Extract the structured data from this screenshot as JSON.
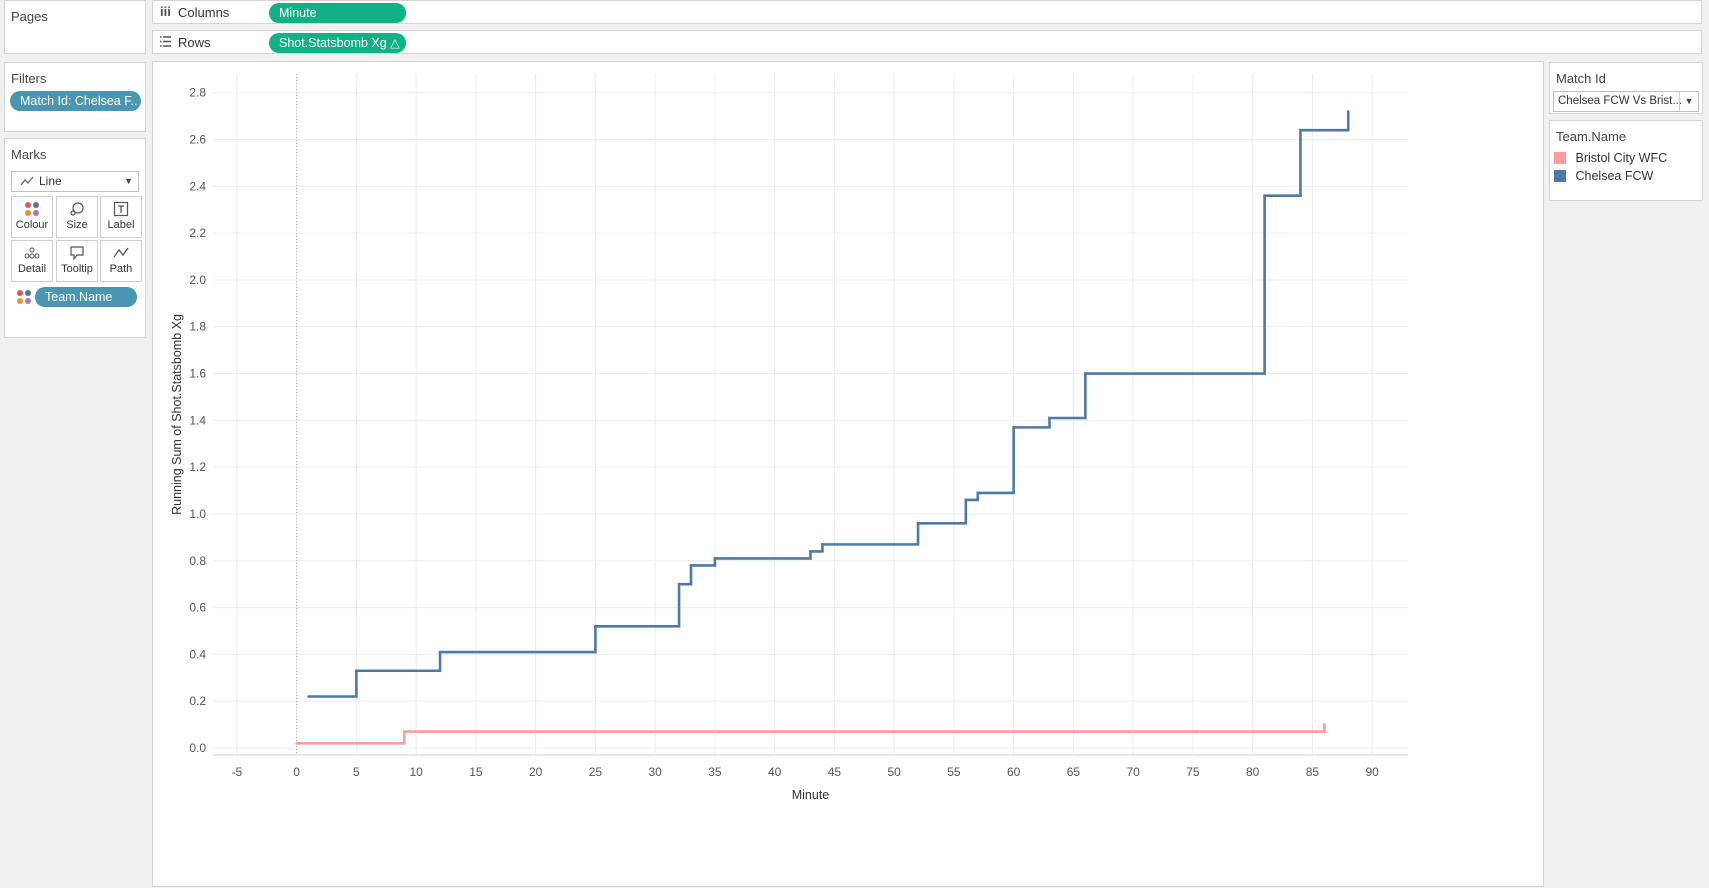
{
  "left_panel": {
    "pages_title": "Pages",
    "filters_title": "Filters",
    "filter_pill": "Match Id: Chelsea F..",
    "marks_title": "Marks",
    "mark_type": "Line",
    "cards": {
      "colour": "Colour",
      "size": "Size",
      "label": "Label",
      "detail": "Detail",
      "tooltip": "Tooltip",
      "path": "Path"
    },
    "color_pill": "Team.Name"
  },
  "shelves": {
    "columns_label": "Columns",
    "columns_pill": "Minute",
    "rows_label": "Rows",
    "rows_pill": "Shot.Statsbomb Xg △"
  },
  "right_panel": {
    "match_title": "Match Id",
    "match_value": "Chelsea FCW Vs Brist...",
    "legend_title": "Team.Name",
    "legend_items": [
      {
        "label": "Bristol City WFC",
        "color": "#ff9d9a"
      },
      {
        "label": "Chelsea FCW",
        "color": "#4e79a7"
      }
    ]
  },
  "chart_data": {
    "type": "line",
    "line_shape": "step",
    "xlabel": "Minute",
    "ylabel": "Running Sum of Shot.Statsbomb Xg",
    "xlim": [
      -7,
      93
    ],
    "ylim": [
      -0.03,
      2.88
    ],
    "xticks": [
      -5,
      0,
      5,
      10,
      15,
      20,
      25,
      30,
      35,
      40,
      45,
      50,
      55,
      60,
      65,
      70,
      75,
      80,
      85,
      90
    ],
    "yticks": [
      0.0,
      0.2,
      0.4,
      0.6,
      0.8,
      1.0,
      1.2,
      1.4,
      1.6,
      1.8,
      2.0,
      2.2,
      2.4,
      2.6,
      2.8
    ],
    "grid": true,
    "zero_line_x": 0,
    "series": [
      {
        "name": "Chelsea FCW",
        "color": "#4e79a7",
        "x": [
          1,
          5,
          12,
          25,
          32,
          33,
          35,
          43,
          44,
          52,
          56,
          57,
          60,
          63,
          66,
          81,
          84,
          88
        ],
        "y": [
          0.22,
          0.33,
          0.41,
          0.52,
          0.7,
          0.78,
          0.81,
          0.84,
          0.87,
          0.96,
          1.06,
          1.09,
          1.37,
          1.41,
          1.6,
          2.36,
          2.64,
          2.72
        ]
      },
      {
        "name": "Bristol City WFC",
        "color": "#ff9d9a",
        "x": [
          0,
          9,
          86
        ],
        "y": [
          0.02,
          0.07,
          0.1
        ]
      }
    ]
  }
}
